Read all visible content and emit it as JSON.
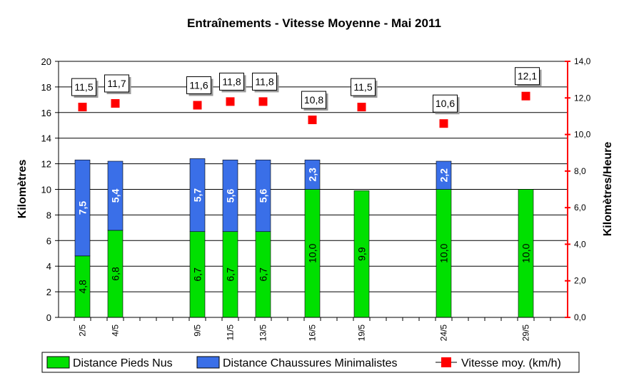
{
  "chart_data": {
    "type": "bar",
    "stacked": true,
    "title": "Entraînements - Vitesse Moyenne - Mai 2011",
    "ylabel": "Kilomètres",
    "y2label": "Kilomètres/Heure",
    "ylim": [
      0,
      20
    ],
    "y2lim": [
      0,
      14
    ],
    "yticks": [
      "0",
      "2",
      "4",
      "6",
      "8",
      "10",
      "12",
      "14",
      "16",
      "18",
      "20"
    ],
    "y2ticks": [
      "0,0",
      "2,0",
      "4,0",
      "6,0",
      "8,0",
      "10,0",
      "12,0",
      "14,0"
    ],
    "grid": "horizontal major",
    "legend_placement": "bottom",
    "categories": [
      "2/5",
      "4/5",
      "9/5",
      "11/5",
      "13/5",
      "16/5",
      "19/5",
      "24/5",
      "29/5"
    ],
    "day_of_month": [
      2,
      4,
      9,
      11,
      13,
      16,
      19,
      24,
      29
    ],
    "series": [
      {
        "name": "Distance Pieds Nus",
        "color": "#00e000",
        "values": [
          4.8,
          6.8,
          6.7,
          6.7,
          6.7,
          10.0,
          9.9,
          10.0,
          10.0
        ],
        "labels": [
          "4,8",
          "6,8",
          "6,7",
          "6,7",
          "6,7",
          "10,0",
          "9,9",
          "10,0",
          "10,0"
        ]
      },
      {
        "name": "Distance Chaussures Minimalistes",
        "color": "#3a6fe8",
        "values": [
          7.5,
          5.4,
          5.7,
          5.6,
          5.6,
          2.3,
          null,
          2.2,
          null
        ],
        "labels": [
          "7,5",
          "5,4",
          "5,7",
          "5,6",
          "5,6",
          "2,3",
          "",
          "2,2",
          ""
        ]
      },
      {
        "name": "Vitesse moy. (km/h)",
        "color": "#ff0000",
        "axis": "right",
        "marker": "square",
        "values": [
          11.5,
          11.7,
          11.6,
          11.8,
          11.8,
          10.8,
          11.5,
          10.6,
          12.1
        ],
        "labels": [
          "11,5",
          "11,7",
          "11,6",
          "11,8",
          "11,8",
          "10,8",
          "11,5",
          "10,6",
          "12,1"
        ]
      }
    ]
  }
}
